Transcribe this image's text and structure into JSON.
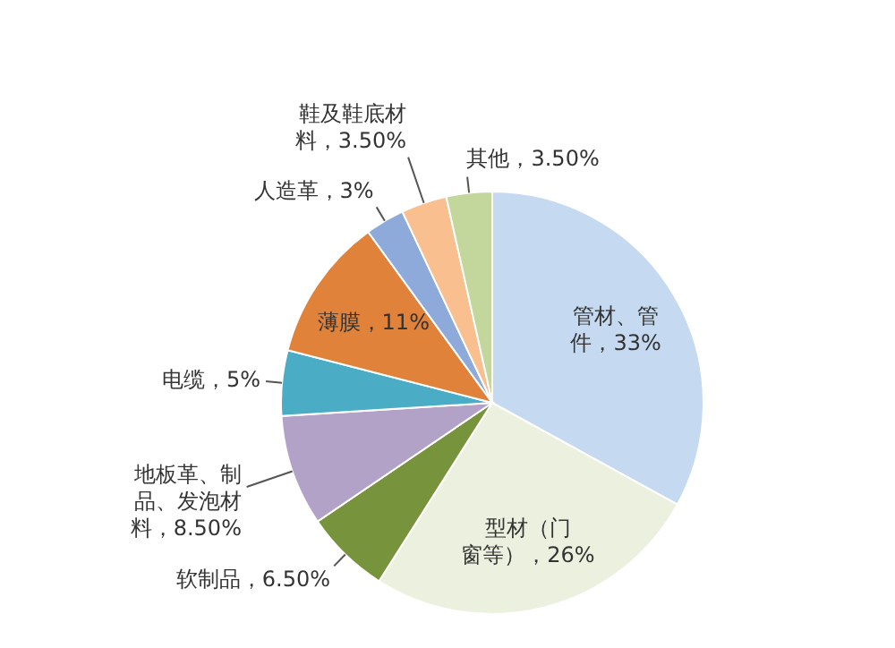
{
  "chart_data": {
    "type": "pie",
    "categories": [
      "管材、管件",
      "型材（门窗等）",
      "软制品",
      "地板革、制品、发泡材料",
      "电缆",
      "薄膜",
      "人造革",
      "鞋及鞋底材料",
      "其他"
    ],
    "values": [
      33,
      26,
      6.5,
      8.5,
      5,
      11,
      3,
      3.5,
      3.5
    ],
    "value_labels": [
      "33%",
      "26%",
      "6.50%",
      "8.50%",
      "5%",
      "11%",
      "3%",
      "3.50%",
      "3.50%"
    ],
    "colors": [
      "#c5d9f1",
      "#ebf1de",
      "#77933c",
      "#b3a2c7",
      "#4bacc6",
      "#e0823a",
      "#8eaadb",
      "#f9bf8f",
      "#c3d69b"
    ]
  }
}
